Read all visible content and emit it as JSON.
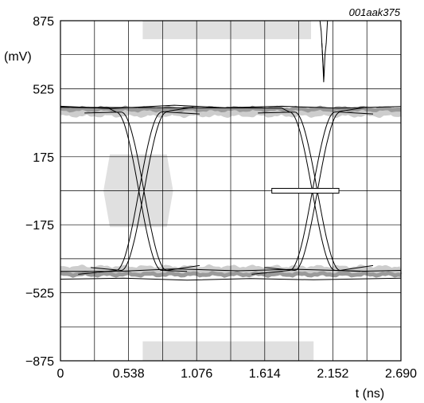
{
  "figure_id": "001aak375",
  "chart_data": {
    "type": "line",
    "title": "",
    "xlabel": "t (ns)",
    "ylabel": "(mV)",
    "xlim": [
      0,
      2.69
    ],
    "ylim": [
      -875,
      875
    ],
    "x_ticks": [
      0,
      0.538,
      1.076,
      1.614,
      2.152,
      2.69
    ],
    "x_tick_labels": [
      "0",
      "0.538",
      "1.076",
      "1.614",
      "2.152",
      "2.690"
    ],
    "y_ticks": [
      875,
      525,
      175,
      -175,
      -525,
      -875
    ],
    "y_tick_labels": [
      "875",
      "525",
      "175",
      "−175",
      "−525",
      "−875"
    ],
    "grid": true,
    "grid_divisions": {
      "x": 10,
      "y": 10
    },
    "colors": {
      "trace": "#000000",
      "band_light": "#cdcdcd",
      "band_dark": "#9a9a9a",
      "mask": "#e0e0e0",
      "grid": "#000000"
    },
    "masks": [
      {
        "shape": "hexagon",
        "points": [
          [
            0.34,
            0
          ],
          [
            0.39,
            187
          ],
          [
            0.84,
            187
          ],
          [
            0.89,
            0
          ],
          [
            0.84,
            -187
          ],
          [
            0.39,
            -187
          ]
        ]
      },
      {
        "shape": "rect",
        "x": [
          0.65,
          1.98
        ],
        "y": [
          780,
          875
        ]
      },
      {
        "shape": "rect",
        "x": [
          0.65,
          2.0
        ],
        "y": [
          -875,
          -775
        ]
      }
    ],
    "eye_diagram": {
      "high_level": 405,
      "low_level": -410,
      "crossings": [
        0.62,
        1.99
      ],
      "unit_interval": 1.37
    },
    "annotation_line": {
      "x": [
        1.67,
        2.2
      ],
      "y": 0
    }
  }
}
